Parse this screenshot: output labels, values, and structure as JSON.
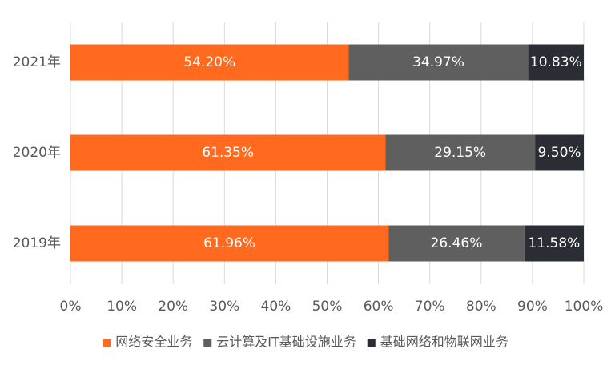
{
  "chart_data": {
    "type": "bar",
    "orientation": "horizontal",
    "stacked": "percent",
    "categories": [
      "2021年",
      "2020年",
      "2019年"
    ],
    "series": [
      {
        "name": "网络安全业务",
        "color": "#ff6a1f",
        "values": [
          54.2,
          61.35,
          61.96
        ],
        "labels": [
          "54.20%",
          "61.35%",
          "61.96%"
        ]
      },
      {
        "name": "云计算及IT基础设施业务",
        "color": "#5f5f5f",
        "values": [
          34.97,
          29.15,
          26.46
        ],
        "labels": [
          "34.97%",
          "29.15%",
          "26.46%"
        ]
      },
      {
        "name": "基础网络和物联网业务",
        "color": "#2a2d33",
        "values": [
          10.83,
          9.5,
          11.58
        ],
        "labels": [
          "10.83%",
          "9.50%",
          "11.58%"
        ]
      }
    ],
    "xlim": [
      0,
      100
    ],
    "x_ticks": [
      "0%",
      "10%",
      "20%",
      "30%",
      "40%",
      "50%",
      "60%",
      "70%",
      "80%",
      "90%",
      "100%"
    ],
    "grid": "vertical",
    "legend_position": "bottom"
  }
}
